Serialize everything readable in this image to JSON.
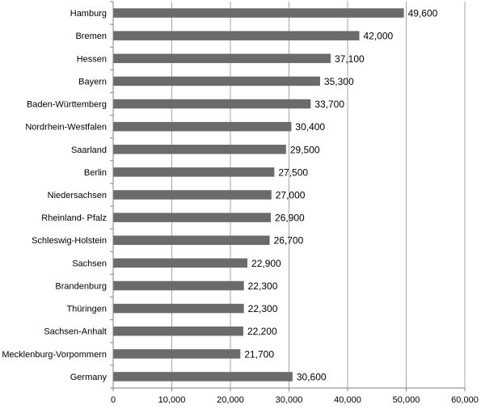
{
  "chart_data": {
    "type": "bar",
    "orientation": "horizontal",
    "categories": [
      "Hamburg",
      "Bremen",
      "Hessen",
      "Bayern",
      "Baden-Württemberg",
      "Nordrhein-Westfalen",
      "Saarland",
      "Berlin",
      "Niedersachsen",
      "Rheinland- Pfalz",
      "Schleswig-Holstein",
      "Sachsen",
      "Brandenburg",
      "Thüringen",
      "Sachsen-Anhalt",
      "Mecklenburg-Vorpommern",
      "Germany"
    ],
    "values": [
      49600,
      42000,
      37100,
      35300,
      33700,
      30400,
      29500,
      27500,
      27000,
      26900,
      26700,
      22900,
      22300,
      22300,
      22200,
      21700,
      30600
    ],
    "value_labels": [
      "49,600",
      "42,000",
      "37,100",
      "35,300",
      "33,700",
      "30,400",
      "29,500",
      "27,500",
      "27,000",
      "26,900",
      "26,700",
      "22,900",
      "22,300",
      "22,300",
      "22,200",
      "21,700",
      "30,600"
    ],
    "x_ticks": [
      0,
      10000,
      20000,
      30000,
      40000,
      50000,
      60000
    ],
    "x_tick_labels": [
      "0",
      "10,000",
      "20,000",
      "30,000",
      "40,000",
      "50,000",
      "60,000"
    ],
    "xlim": [
      0,
      60000
    ],
    "grid": "vertical",
    "legend": "none",
    "bar_color": "#6b6b6b",
    "grid_color": "#a6a6a6",
    "title": "",
    "xlabel": "",
    "ylabel": ""
  }
}
